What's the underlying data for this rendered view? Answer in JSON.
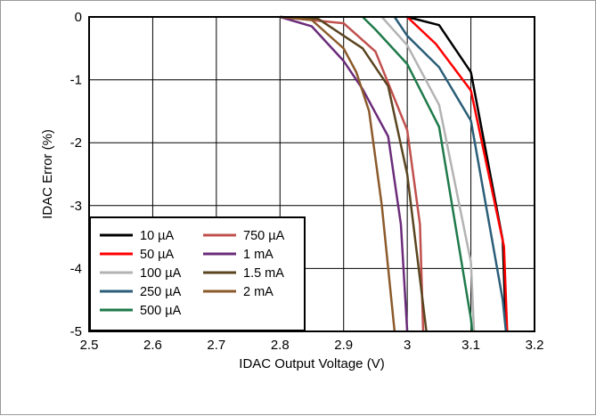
{
  "chart_data": {
    "type": "line",
    "title": "",
    "xlabel": "IDAC Output Voltage (V)",
    "ylabel": "IDAC Error (%)",
    "xlim": [
      2.5,
      3.2
    ],
    "ylim": [
      -5,
      0
    ],
    "xticks": [
      "2.5",
      "2.6",
      "2.7",
      "2.8",
      "2.9",
      "3",
      "3.1",
      "3.2"
    ],
    "yticks": [
      "0",
      "-1",
      "-2",
      "-3",
      "-4",
      "-5"
    ],
    "grid": true,
    "legend_position": "bottom-left",
    "series": [
      {
        "name": "10 µA",
        "color": "#000000",
        "points": [
          [
            3.0,
            0
          ],
          [
            3.05,
            -0.13
          ],
          [
            3.1,
            -0.88
          ],
          [
            3.15,
            -3.55
          ],
          [
            3.155,
            -5
          ]
        ]
      },
      {
        "name": "50 µA",
        "color": "#ff0000",
        "points": [
          [
            3.0,
            0
          ],
          [
            3.045,
            -0.43
          ],
          [
            3.1,
            -1.17
          ],
          [
            3.152,
            -3.65
          ],
          [
            3.157,
            -5
          ]
        ]
      },
      {
        "name": "100 µA",
        "color": "#b3b3b3",
        "points": [
          [
            2.96,
            0
          ],
          [
            3.0,
            -0.45
          ],
          [
            3.05,
            -1.4
          ],
          [
            3.1,
            -3.9
          ],
          [
            3.105,
            -5
          ]
        ]
      },
      {
        "name": "250 µA",
        "color": "#2b5e78",
        "points": [
          [
            2.98,
            0
          ],
          [
            3.0,
            -0.3
          ],
          [
            3.05,
            -0.8
          ],
          [
            3.1,
            -1.65
          ],
          [
            3.15,
            -4.5
          ],
          [
            3.155,
            -5
          ]
        ]
      },
      {
        "name": "500 µA",
        "color": "#1f7a4a",
        "points": [
          [
            2.93,
            0
          ],
          [
            2.95,
            -0.2
          ],
          [
            3.0,
            -0.75
          ],
          [
            3.05,
            -1.75
          ],
          [
            3.1,
            -4.8
          ],
          [
            3.102,
            -5
          ]
        ]
      },
      {
        "name": "750 µA",
        "color": "#c0504d",
        "points": [
          [
            2.8,
            0
          ],
          [
            2.9,
            -0.1
          ],
          [
            2.95,
            -0.55
          ],
          [
            3.0,
            -1.8
          ],
          [
            3.02,
            -3.3
          ],
          [
            3.025,
            -5
          ]
        ]
      },
      {
        "name": "1 mA",
        "color": "#6b2c7a",
        "points": [
          [
            2.8,
            0
          ],
          [
            2.85,
            -0.15
          ],
          [
            2.9,
            -0.7
          ],
          [
            2.93,
            -1.15
          ],
          [
            2.97,
            -1.9
          ],
          [
            2.99,
            -3.3
          ],
          [
            3.0,
            -5
          ]
        ]
      },
      {
        "name": "1.5 mA",
        "color": "#5a4520",
        "points": [
          [
            2.8,
            0
          ],
          [
            2.86,
            -0.03
          ],
          [
            2.93,
            -0.5
          ],
          [
            2.97,
            -1.1
          ],
          [
            3.0,
            -2.5
          ],
          [
            3.03,
            -5
          ]
        ]
      },
      {
        "name": "2 mA",
        "color": "#8b5a2b",
        "points": [
          [
            2.8,
            0
          ],
          [
            2.85,
            -0.05
          ],
          [
            2.9,
            -0.5
          ],
          [
            2.92,
            -0.88
          ],
          [
            2.94,
            -1.5
          ],
          [
            2.96,
            -3.0
          ],
          [
            2.98,
            -5
          ]
        ]
      }
    ]
  }
}
